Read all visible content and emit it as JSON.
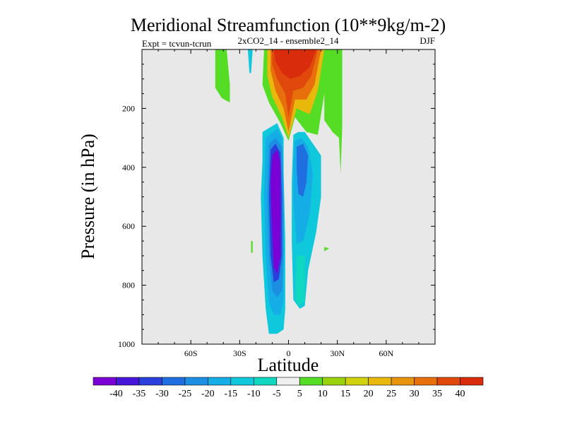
{
  "chart_data": {
    "type": "contour",
    "title": "Meridional Streamfunction (10**9kg/m-2)",
    "subtitle": "2xCO2_14 - ensemble2_14",
    "left_annotation": "Expt = tcvun-tcrun",
    "season": "DJF",
    "xlabel": "Latitude",
    "ylabel": "Pressure (in hPa)",
    "x_tick_labels": [
      "60S",
      "30S",
      "0",
      "30N",
      "60N"
    ],
    "x_tick_values": [
      -60,
      -30,
      0,
      30,
      60
    ],
    "xlim": [
      -90,
      90
    ],
    "y_tick_labels": [
      "200",
      "400",
      "600",
      "800",
      "1000"
    ],
    "y_tick_values": [
      200,
      400,
      600,
      800,
      1000
    ],
    "ylim": [
      0,
      1000
    ],
    "y_inverted": true,
    "background_color": "#e8e8e8",
    "colorbar": {
      "levels": [
        -40,
        -35,
        -30,
        -25,
        -20,
        -15,
        -10,
        -5,
        5,
        10,
        15,
        20,
        25,
        30,
        35,
        40
      ],
      "level_labels": [
        "-40",
        "-35",
        "-30",
        "-25",
        "-20",
        "-15",
        "-10",
        "-5",
        "5",
        "10",
        "15",
        "20",
        "25",
        "30",
        "35",
        "40"
      ],
      "colors": [
        "#7a00d6",
        "#4816d8",
        "#2a3fdc",
        "#1f6fe0",
        "#1c8fe3",
        "#14ade6",
        "#10c8dc",
        "#10d8c0",
        "#f0f0f0",
        "#55dc24",
        "#9ad20c",
        "#cfd20c",
        "#e8b80c",
        "#e8940c",
        "#e8700c",
        "#e0480c",
        "#d82c0c"
      ]
    },
    "features": [
      {
        "name": "northern-hemisphere-positive-cell",
        "lat_range": [
          -5,
          22
        ],
        "pressure_range": [
          0,
          300
        ],
        "peak": 40
      },
      {
        "name": "southern-tropics-negative-cell",
        "lat_range": [
          -12,
          -2
        ],
        "pressure_range": [
          300,
          900
        ],
        "peak": -40
      },
      {
        "name": "northern-tropics-negative-cell",
        "lat_range": [
          2,
          14
        ],
        "pressure_range": [
          260,
          880
        ],
        "peak": -25
      }
    ]
  }
}
